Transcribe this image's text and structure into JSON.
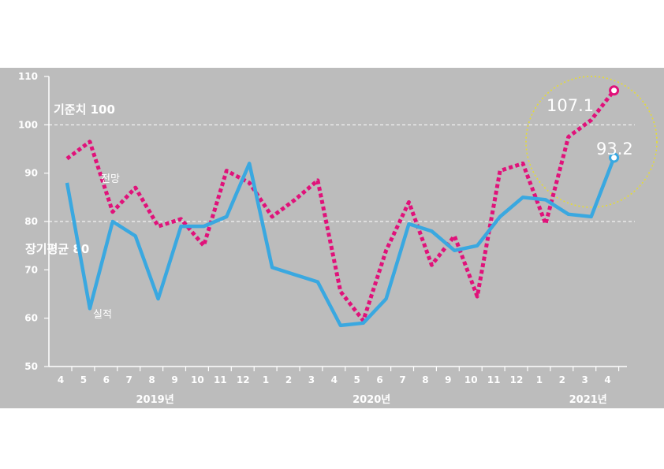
{
  "chart_data": {
    "type": "line",
    "categories": [
      "4",
      "5",
      "6",
      "7",
      "8",
      "9",
      "10",
      "11",
      "12",
      "1",
      "2",
      "3",
      "4",
      "5",
      "6",
      "7",
      "8",
      "9",
      "10",
      "11",
      "12",
      "1",
      "2",
      "3",
      "4"
    ],
    "year_labels": [
      "2019년",
      "2020년",
      "2021년"
    ],
    "yticks": [
      50,
      60,
      70,
      80,
      90,
      100,
      110
    ],
    "ylim": [
      50,
      110
    ],
    "series": [
      {
        "name": "실적",
        "color": "#3aa8e0",
        "style": "solid",
        "values": [
          88,
          62,
          80,
          77,
          64,
          79,
          79,
          81,
          92,
          70.5,
          69,
          67.5,
          58.5,
          59,
          64,
          79.5,
          78,
          74,
          75,
          81,
          85,
          84.5,
          81.5,
          81,
          93.2
        ]
      },
      {
        "name": "전망",
        "color": "#e0127a",
        "style": "dotted",
        "values": [
          93,
          96.5,
          82,
          87,
          79,
          80.5,
          75,
          90.5,
          88,
          81,
          84.5,
          88.5,
          65.5,
          59.5,
          74,
          84,
          71,
          77,
          64.5,
          90.5,
          92,
          79.5,
          97.5,
          101,
          107.1
        ]
      }
    ],
    "reference_lines": [
      {
        "label": "기준치 100",
        "value": 100
      },
      {
        "label": "장기평균 80",
        "value": 80
      }
    ],
    "highlights": [
      "107.1",
      "93.2"
    ]
  }
}
